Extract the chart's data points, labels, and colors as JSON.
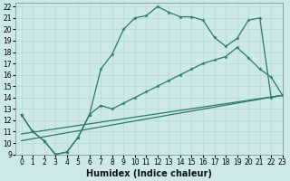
{
  "xlabel": "Humidex (Indice chaleur)",
  "xlim": [
    -0.5,
    23
  ],
  "ylim": [
    9,
    22.3
  ],
  "xticks": [
    0,
    1,
    2,
    3,
    4,
    5,
    6,
    7,
    8,
    9,
    10,
    11,
    12,
    13,
    14,
    15,
    16,
    17,
    18,
    19,
    20,
    21,
    22,
    23
  ],
  "yticks": [
    9,
    10,
    11,
    12,
    13,
    14,
    15,
    16,
    17,
    18,
    19,
    20,
    21,
    22
  ],
  "bg_color": "#cce8e8",
  "line_color": "#2a7a6a",
  "grid_color": "#b8d8d8",
  "curve1_x": [
    0,
    1,
    2,
    3,
    4,
    5,
    6,
    7,
    8,
    9,
    10,
    11,
    12,
    13,
    14,
    15,
    16,
    17,
    18,
    19,
    20,
    21,
    22,
    23
  ],
  "curve1_y": [
    12.5,
    11.0,
    10.2,
    9.0,
    9.2,
    10.5,
    12.5,
    16.5,
    17.8,
    20.0,
    21.0,
    21.2,
    22.0,
    21.5,
    21.1,
    21.1,
    20.8,
    19.3,
    18.5,
    19.2,
    20.8,
    21.0,
    14.0,
    14.2
  ],
  "curve2_x": [
    0,
    1,
    2,
    3,
    4,
    5,
    6,
    7,
    8,
    9,
    10,
    11,
    12,
    13,
    14,
    15,
    16,
    17,
    18,
    19,
    20,
    21,
    22,
    23
  ],
  "curve2_y": [
    12.5,
    11.0,
    10.2,
    9.0,
    9.2,
    10.5,
    12.5,
    13.3,
    13.0,
    13.5,
    14.0,
    14.5,
    15.0,
    15.5,
    16.0,
    16.5,
    17.0,
    17.3,
    17.6,
    18.4,
    17.5,
    16.5,
    15.8,
    14.2
  ],
  "line3_x": [
    0,
    23
  ],
  "line3_y": [
    10.8,
    14.2
  ],
  "line4_x": [
    0,
    23
  ],
  "line4_y": [
    10.2,
    14.2
  ],
  "tick_fontsize": 5.5,
  "label_fontsize": 7
}
